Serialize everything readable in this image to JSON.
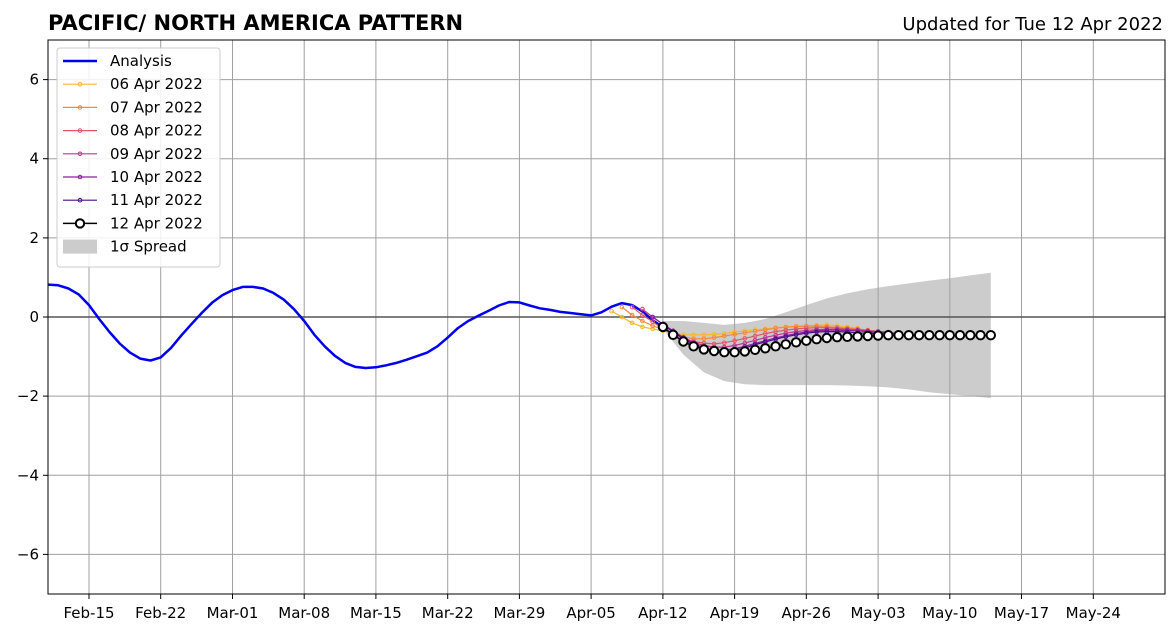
{
  "header": {
    "title": "PACIFIC/ NORTH AMERICA PATTERN",
    "updated": "Updated for Tue 12 Apr 2022"
  },
  "colors": {
    "analysis": "#0000ee",
    "spread": "#cccccc",
    "grid": "#a0a0a0",
    "zero_line": "#555555"
  },
  "chart_data": {
    "type": "line",
    "title": "PACIFIC/ NORTH AMERICA PATTERN",
    "subtitle": "Updated for Tue 12 Apr 2022",
    "x_axis": {
      "type": "date",
      "range": [
        "2022-02-11",
        "2022-05-31"
      ],
      "tick_dates": [
        "2022-02-15",
        "2022-02-22",
        "2022-03-01",
        "2022-03-08",
        "2022-03-15",
        "2022-03-22",
        "2022-03-29",
        "2022-04-05",
        "2022-04-12",
        "2022-04-19",
        "2022-04-26",
        "2022-05-03",
        "2022-05-10",
        "2022-05-17",
        "2022-05-24"
      ],
      "tick_labels": [
        "Feb-15",
        "Feb-22",
        "Mar-01",
        "Mar-08",
        "Mar-15",
        "Mar-22",
        "Mar-29",
        "Apr-05",
        "Apr-12",
        "Apr-19",
        "Apr-26",
        "May-03",
        "May-10",
        "May-17",
        "May-24"
      ]
    },
    "y_axis": {
      "range": [
        -7,
        7
      ],
      "ticks": [
        6,
        4,
        2,
        0,
        -2,
        -4,
        -6
      ],
      "tick_labels": [
        "6",
        "4",
        "2",
        "0",
        "−2",
        "−4",
        "−6"
      ]
    },
    "grid": true,
    "legend": {
      "placement": "top-left",
      "entries": [
        "Analysis",
        "06 Apr 2022",
        "07 Apr 2022",
        "08 Apr 2022",
        "09 Apr 2022",
        "10 Apr 2022",
        "11 Apr 2022",
        "12 Apr 2022",
        "1σ Spread"
      ]
    },
    "analysis": {
      "name": "Analysis",
      "color": "#0000ee",
      "points": [
        [
          "2022-02-11",
          0.82
        ],
        [
          "2022-02-12",
          0.8
        ],
        [
          "2022-02-13",
          0.72
        ],
        [
          "2022-02-14",
          0.57
        ],
        [
          "2022-02-15",
          0.3
        ],
        [
          "2022-02-16",
          -0.05
        ],
        [
          "2022-02-17",
          -0.38
        ],
        [
          "2022-02-18",
          -0.67
        ],
        [
          "2022-02-19",
          -0.9
        ],
        [
          "2022-02-20",
          -1.05
        ],
        [
          "2022-02-21",
          -1.1
        ],
        [
          "2022-02-22",
          -1.02
        ],
        [
          "2022-02-23",
          -0.78
        ],
        [
          "2022-02-24",
          -0.47
        ],
        [
          "2022-02-25",
          -0.18
        ],
        [
          "2022-02-26",
          0.1
        ],
        [
          "2022-02-27",
          0.36
        ],
        [
          "2022-02-28",
          0.55
        ],
        [
          "2022-03-01",
          0.68
        ],
        [
          "2022-03-02",
          0.76
        ],
        [
          "2022-03-03",
          0.76
        ],
        [
          "2022-03-04",
          0.72
        ],
        [
          "2022-03-05",
          0.61
        ],
        [
          "2022-03-06",
          0.44
        ],
        [
          "2022-03-07",
          0.2
        ],
        [
          "2022-03-08",
          -0.1
        ],
        [
          "2022-03-09",
          -0.45
        ],
        [
          "2022-03-10",
          -0.74
        ],
        [
          "2022-03-11",
          -0.98
        ],
        [
          "2022-03-12",
          -1.16
        ],
        [
          "2022-03-13",
          -1.26
        ],
        [
          "2022-03-14",
          -1.29
        ],
        [
          "2022-03-15",
          -1.27
        ],
        [
          "2022-03-16",
          -1.22
        ],
        [
          "2022-03-17",
          -1.16
        ],
        [
          "2022-03-18",
          -1.08
        ],
        [
          "2022-03-19",
          -0.99
        ],
        [
          "2022-03-20",
          -0.9
        ],
        [
          "2022-03-21",
          -0.74
        ],
        [
          "2022-03-22",
          -0.52
        ],
        [
          "2022-03-23",
          -0.28
        ],
        [
          "2022-03-24",
          -0.1
        ],
        [
          "2022-03-25",
          0.03
        ],
        [
          "2022-03-26",
          0.16
        ],
        [
          "2022-03-27",
          0.29
        ],
        [
          "2022-03-28",
          0.38
        ],
        [
          "2022-03-29",
          0.37
        ],
        [
          "2022-03-30",
          0.29
        ],
        [
          "2022-03-31",
          0.22
        ],
        [
          "2022-04-01",
          0.18
        ],
        [
          "2022-04-02",
          0.13
        ],
        [
          "2022-04-03",
          0.1
        ],
        [
          "2022-04-04",
          0.07
        ],
        [
          "2022-04-05",
          0.04
        ],
        [
          "2022-04-06",
          0.12
        ],
        [
          "2022-04-07",
          0.26
        ],
        [
          "2022-04-08",
          0.35
        ],
        [
          "2022-04-09",
          0.3
        ],
        [
          "2022-04-10",
          0.14
        ],
        [
          "2022-04-11",
          -0.08
        ],
        [
          "2022-04-12",
          -0.26
        ]
      ]
    },
    "forecasts": [
      {
        "name": "06 Apr 2022",
        "color": "#f5b731",
        "start": "2022-04-07",
        "values": [
          0.15,
          0.0,
          -0.15,
          -0.25,
          -0.3,
          -0.35,
          -0.4,
          -0.45,
          -0.45,
          -0.45,
          -0.44,
          -0.42,
          -0.38,
          -0.35,
          -0.32,
          -0.3,
          -0.27,
          -0.25,
          -0.23,
          -0.22,
          -0.21,
          -0.2,
          -0.22,
          -0.25,
          -0.28
        ]
      },
      {
        "name": "07 Apr 2022",
        "color": "#f08c3a",
        "start": "2022-04-08",
        "values": [
          0.25,
          0.05,
          -0.1,
          -0.22,
          -0.32,
          -0.42,
          -0.5,
          -0.55,
          -0.55,
          -0.52,
          -0.48,
          -0.44,
          -0.4,
          -0.36,
          -0.32,
          -0.28,
          -0.26,
          -0.24,
          -0.23,
          -0.23,
          -0.24,
          -0.26,
          -0.28,
          -0.3,
          -0.33
        ]
      },
      {
        "name": "08 Apr 2022",
        "color": "#e05868",
        "start": "2022-04-09",
        "values": [
          0.25,
          0.05,
          -0.12,
          -0.3,
          -0.45,
          -0.55,
          -0.62,
          -0.66,
          -0.68,
          -0.65,
          -0.6,
          -0.54,
          -0.48,
          -0.42,
          -0.37,
          -0.33,
          -0.3,
          -0.28,
          -0.27,
          -0.27,
          -0.28,
          -0.3,
          -0.32,
          -0.34,
          -0.36
        ]
      },
      {
        "name": "09 Apr 2022",
        "color": "#c2378c",
        "start": "2022-04-10",
        "values": [
          0.2,
          0.0,
          -0.18,
          -0.36,
          -0.52,
          -0.64,
          -0.72,
          -0.76,
          -0.76,
          -0.72,
          -0.66,
          -0.59,
          -0.52,
          -0.46,
          -0.41,
          -0.37,
          -0.34,
          -0.32,
          -0.31,
          -0.31,
          -0.32,
          -0.33,
          -0.35,
          -0.37,
          -0.38
        ]
      },
      {
        "name": "10 Apr 2022",
        "color": "#8a1ea0",
        "start": "2022-04-11",
        "values": [
          0.0,
          -0.18,
          -0.35,
          -0.52,
          -0.67,
          -0.78,
          -0.84,
          -0.84,
          -0.8,
          -0.74,
          -0.67,
          -0.6,
          -0.53,
          -0.47,
          -0.42,
          -0.38,
          -0.35,
          -0.33,
          -0.33,
          -0.34,
          -0.35,
          -0.37,
          -0.39,
          -0.4,
          -0.41
        ]
      },
      {
        "name": "11 Apr 2022",
        "color": "#4b0c8c",
        "start": "2022-04-12",
        "values": [
          -0.2,
          -0.38,
          -0.55,
          -0.7,
          -0.82,
          -0.88,
          -0.88,
          -0.84,
          -0.78,
          -0.7,
          -0.63,
          -0.56,
          -0.5,
          -0.45,
          -0.41,
          -0.38,
          -0.37,
          -0.37,
          -0.38,
          -0.4,
          -0.41,
          -0.42,
          -0.43,
          -0.44,
          -0.45
        ]
      },
      {
        "name": "12 Apr 2022",
        "color": "#000000",
        "start": "2022-04-12",
        "values": [
          -0.25,
          -0.45,
          -0.62,
          -0.74,
          -0.82,
          -0.86,
          -0.89,
          -0.89,
          -0.87,
          -0.83,
          -0.79,
          -0.74,
          -0.69,
          -0.64,
          -0.6,
          -0.56,
          -0.53,
          -0.51,
          -0.5,
          -0.49,
          -0.48,
          -0.47,
          -0.46,
          -0.46,
          -0.46,
          -0.46,
          -0.46,
          -0.46,
          -0.46,
          -0.46,
          -0.46,
          -0.46,
          -0.46
        ]
      }
    ],
    "spread": {
      "name": "1σ Spread",
      "color": "#cccccc",
      "points": [
        [
          "2022-04-12",
          -0.1,
          -0.3
        ],
        [
          "2022-04-14",
          -0.1,
          -0.95
        ],
        [
          "2022-04-16",
          -0.15,
          -1.4
        ],
        [
          "2022-04-18",
          -0.2,
          -1.62
        ],
        [
          "2022-04-20",
          -0.15,
          -1.7
        ],
        [
          "2022-04-22",
          -0.05,
          -1.72
        ],
        [
          "2022-04-24",
          0.12,
          -1.72
        ],
        [
          "2022-04-26",
          0.3,
          -1.72
        ],
        [
          "2022-04-28",
          0.47,
          -1.72
        ],
        [
          "2022-04-30",
          0.6,
          -1.73
        ],
        [
          "2022-05-02",
          0.7,
          -1.75
        ],
        [
          "2022-05-04",
          0.78,
          -1.78
        ],
        [
          "2022-05-06",
          0.85,
          -1.83
        ],
        [
          "2022-05-08",
          0.92,
          -1.9
        ],
        [
          "2022-05-10",
          0.98,
          -1.95
        ],
        [
          "2022-05-12",
          1.05,
          -2.0
        ],
        [
          "2022-05-14",
          1.12,
          -2.05
        ]
      ]
    }
  }
}
